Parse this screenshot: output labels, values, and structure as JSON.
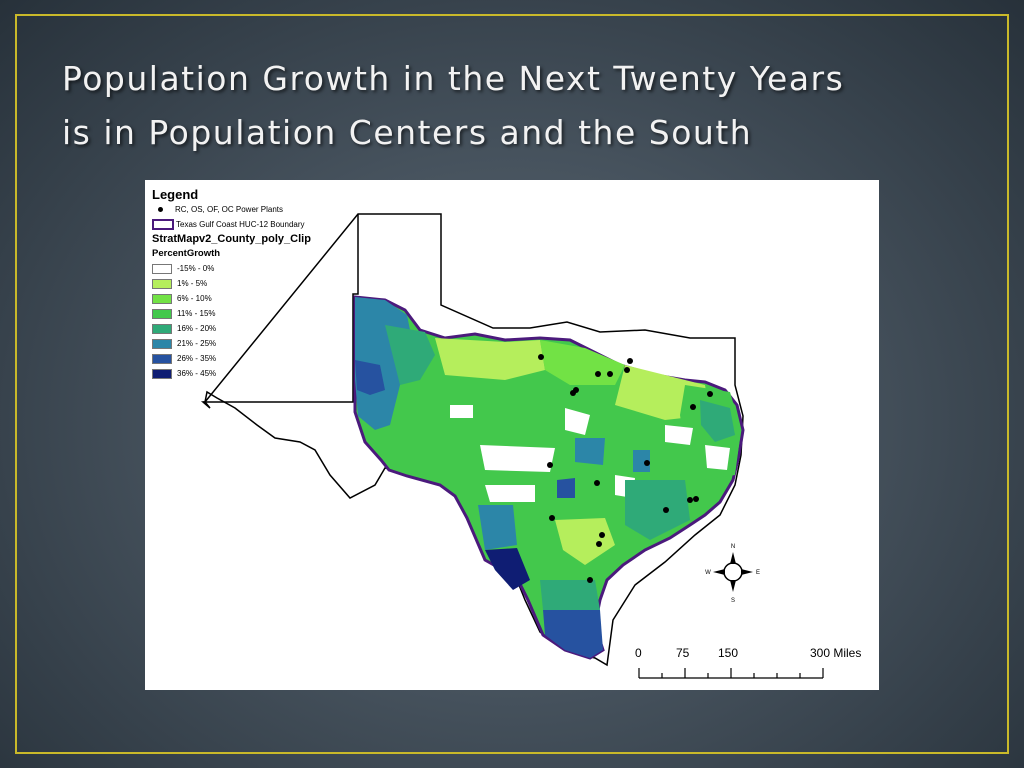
{
  "slide": {
    "title_line1": "Population Growth in the Next Twenty Years",
    "title_line2": "is in Population Centers and the South"
  },
  "legend": {
    "title": "Legend",
    "power_plants_label": "RC, OS, OF, OC Power Plants",
    "huc_boundary_label": "Texas Gulf Coast HUC-12 Boundary",
    "layer_name": "StratMapv2_County_poly_Clip",
    "field_name": "PercentGrowth",
    "classes": [
      {
        "label": "-15% - 0%",
        "color": "#ffffff"
      },
      {
        "label": "1% - 5%",
        "color": "#b5ee5c"
      },
      {
        "label": "6% - 10%",
        "color": "#72e245"
      },
      {
        "label": "11% - 15%",
        "color": "#43c84c"
      },
      {
        "label": "16% - 20%",
        "color": "#2faa78"
      },
      {
        "label": "21% - 25%",
        "color": "#2c86a8"
      },
      {
        "label": "26% - 35%",
        "color": "#2652a0"
      },
      {
        "label": "36% - 45%",
        "color": "#0f1d73"
      }
    ]
  },
  "scale_bar": {
    "labels": [
      "0",
      "75",
      "150",
      "300 Miles"
    ]
  },
  "north_arrow": {
    "n": "N",
    "s": "S",
    "e": "E",
    "w": "W"
  },
  "colors": {
    "frame": "#c9b92a",
    "huc_boundary": "#4b1a7c",
    "state_outline": "#000000"
  }
}
